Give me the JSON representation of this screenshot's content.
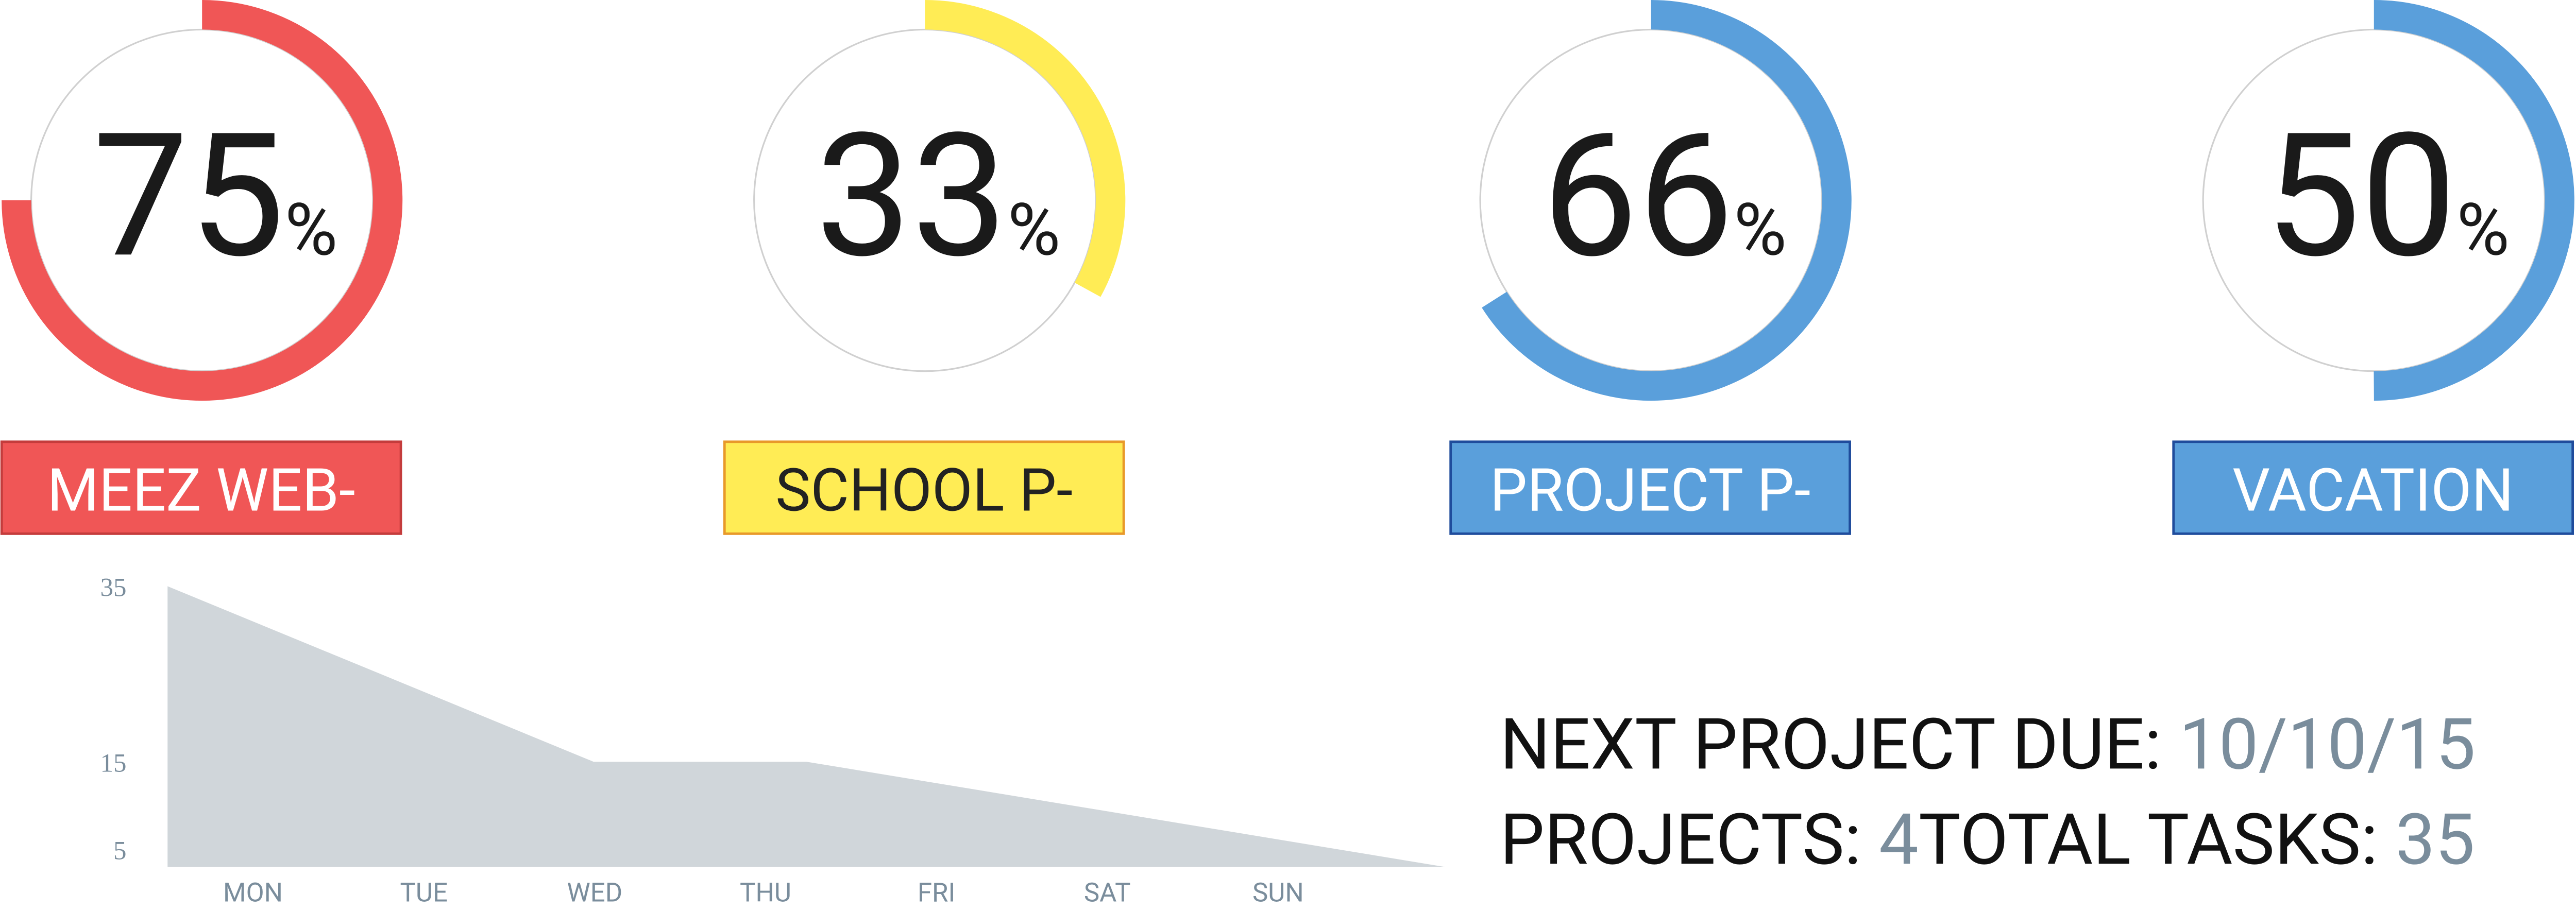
{
  "gauges": [
    {
      "value": 75,
      "label": "MEEZ WEB-",
      "color": "#f05656",
      "border": "#c43c3c",
      "text_color": "#ffffff"
    },
    {
      "value": 33,
      "label": "SCHOOL P-",
      "color": "#ffec55",
      "border": "#e8992a",
      "text_color": "#222222"
    },
    {
      "value": 66,
      "label": "PROJECT P-",
      "color": "#5a9fdb",
      "border": "#1f4c9c",
      "text_color": "#ffffff"
    },
    {
      "value": 50,
      "label": "VACATION",
      "color": "#5a9fdb",
      "border": "#1f4c9c",
      "text_color": "#ffffff"
    }
  ],
  "unit": "%",
  "chart_data": {
    "type": "area",
    "categories": [
      "MON",
      "TUE",
      "WED",
      "THU",
      "FRI",
      "SAT",
      "SUN"
    ],
    "values": [
      35,
      25,
      15,
      15,
      11,
      7,
      3
    ],
    "color": "#d0d6da",
    "ylim": [
      3,
      35
    ],
    "yticks": [
      5,
      15,
      35
    ]
  },
  "summary": {
    "due_label": "NEXT PROJECT DUE: ",
    "due_value": "10/10/15",
    "projects_label": "PROJECTS: ",
    "projects_value": "4",
    "tasks_label": "TOTAL TASKS: ",
    "tasks_value": "35"
  }
}
